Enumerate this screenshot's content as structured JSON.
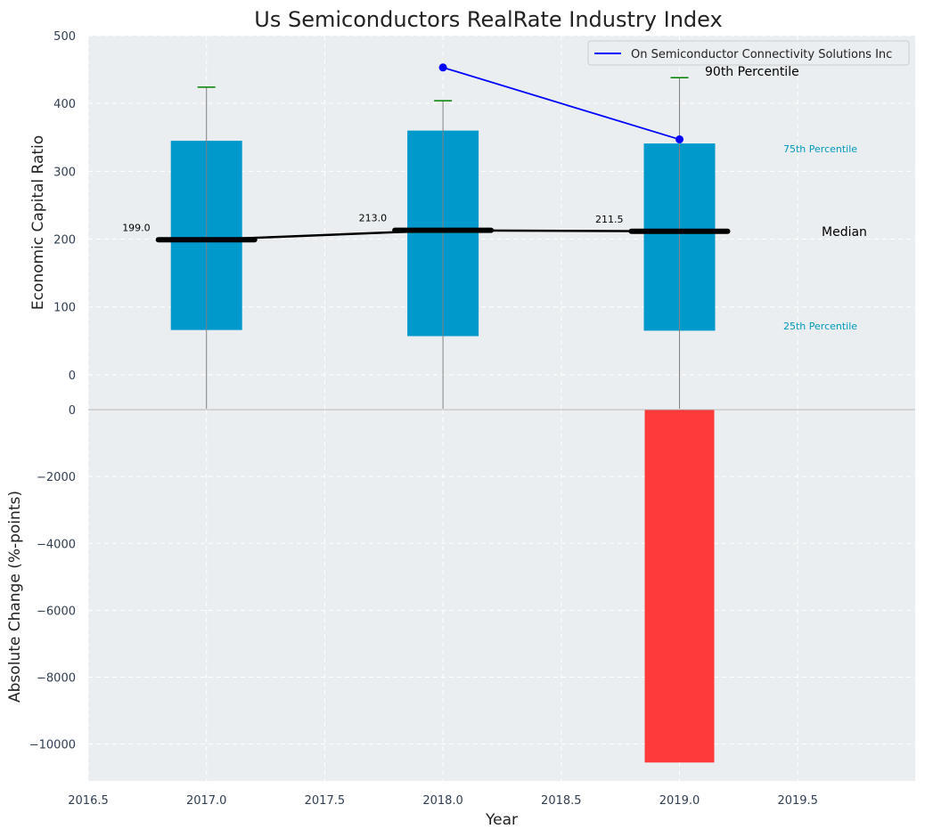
{
  "chart_data": {
    "title": "Us Semiconductors RealRate Industry Index",
    "xlabel": "Year",
    "x_ticks": [
      "2016.5",
      "2017.0",
      "2017.5",
      "2018.0",
      "2018.5",
      "2019.0",
      "2019.5"
    ],
    "grid": true,
    "top_panel": {
      "type": "box",
      "ylabel": "Economic Capital Ratio",
      "ylim": [
        -50,
        500
      ],
      "y_ticks": [
        "0",
        "100",
        "200",
        "300",
        "400",
        "500"
      ],
      "years": [
        2017,
        2018,
        2019
      ],
      "p25": [
        66,
        57,
        65
      ],
      "p75": [
        345,
        360,
        341
      ],
      "median": [
        199,
        213,
        211.5
      ],
      "median_labels": [
        "199.0",
        "213.0",
        "211.5"
      ],
      "p90": [
        424,
        404,
        438
      ],
      "whisker_low": [
        -50,
        -50,
        -50
      ],
      "company_series": {
        "name": "On Semiconductor Connectivity Solutions Inc",
        "x": [
          2018,
          2019
        ],
        "y": [
          453,
          347
        ]
      },
      "annotations": {
        "p90": "90th Percentile",
        "p75": "75th Percentile",
        "median": "Median",
        "p25": "25th Percentile"
      },
      "legend_position": "top-right"
    },
    "bottom_panel": {
      "type": "bar",
      "ylabel": "Absolute Change (%-points)",
      "ylim": [
        -11100,
        0
      ],
      "y_ticks": [
        "0",
        "−2000",
        "−4000",
        "−6000",
        "−8000",
        "−10000"
      ],
      "x": [
        2019
      ],
      "values": [
        -10550
      ]
    },
    "colors": {
      "box": "#0099cc",
      "median": "#000000",
      "p90_cap": "#008000",
      "company": "#0000ff",
      "bar_negative": "#ff3a3a",
      "panel_bg": "#eaeef0",
      "annotation_cyan": "#0099bb"
    }
  }
}
